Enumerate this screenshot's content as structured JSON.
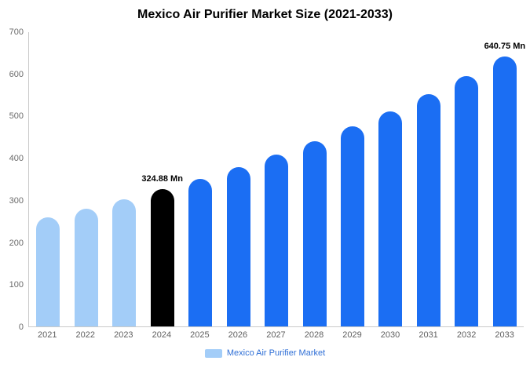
{
  "title": "Mexico Air Purifier Market Size (2021-2033)",
  "legend": {
    "label": "Mexico Air Purifier Market"
  },
  "colors": {
    "light_blue": "#A3CDF8",
    "blue": "#1B6EF3",
    "black": "#000000",
    "axis": "#c9c9c9",
    "tick_text": "#6b6b6b",
    "legend_text": "#2f6fd6"
  },
  "chart_data": {
    "type": "bar",
    "title": "Mexico Air Purifier Market Size (2021-2033)",
    "categories": [
      "2021",
      "2022",
      "2023",
      "2024",
      "2025",
      "2026",
      "2027",
      "2028",
      "2029",
      "2030",
      "2031",
      "2032",
      "2033"
    ],
    "values": [
      259.1,
      279.4,
      301.3,
      324.88,
      350.4,
      377.9,
      407.5,
      439.4,
      473.9,
      511.0,
      551.1,
      594.3,
      640.75
    ],
    "bar_colors": [
      "light_blue",
      "light_blue",
      "light_blue",
      "black",
      "blue",
      "blue",
      "blue",
      "blue",
      "blue",
      "blue",
      "blue",
      "blue",
      "blue"
    ],
    "data_labels": {
      "2024": "324.88 Mn",
      "2033": "640.75 Mn"
    },
    "xlabel": "",
    "ylabel": "",
    "ylim": [
      0,
      700
    ],
    "yticks": [
      0,
      100,
      200,
      300,
      400,
      500,
      600,
      700
    ],
    "grid": false,
    "legend_position": "bottom",
    "legend_entries": [
      "Mexico Air Purifier Market"
    ]
  }
}
